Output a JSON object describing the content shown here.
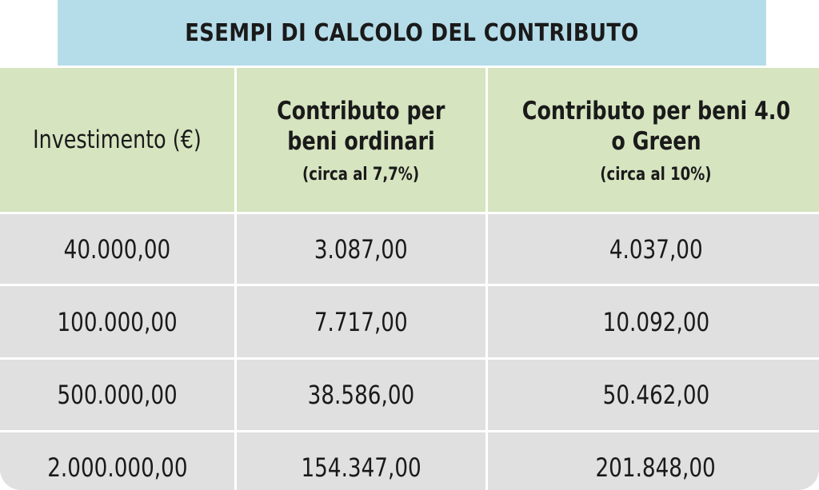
{
  "title": "ESEMPI DI CALCOLO DEL CONTRIBUTO",
  "columns": [
    {
      "label": "Investimento (€)"
    },
    {
      "label_line1": "Contributo per",
      "label_line2": "beni ordinari",
      "sub": "(circa al 7,7%)"
    },
    {
      "label_line1": "Contributo per beni 4.0",
      "label_line2": "o Green",
      "sub": "(circa al 10%)"
    }
  ],
  "rows": [
    [
      "40.000,00",
      "3.087,00",
      "4.037,00"
    ],
    [
      "100.000,00",
      "7.717,00",
      "10.092,00"
    ],
    [
      "500.000,00",
      "38.586,00",
      "50.462,00"
    ],
    [
      "2.000.000,00",
      "154.347,00",
      "201.848,00"
    ]
  ],
  "colors": {
    "title_bg": "#b5dce9",
    "header_bg": "#d6e4c0",
    "row_bg": "#e0e0e0",
    "text": "#1a1a1a"
  }
}
